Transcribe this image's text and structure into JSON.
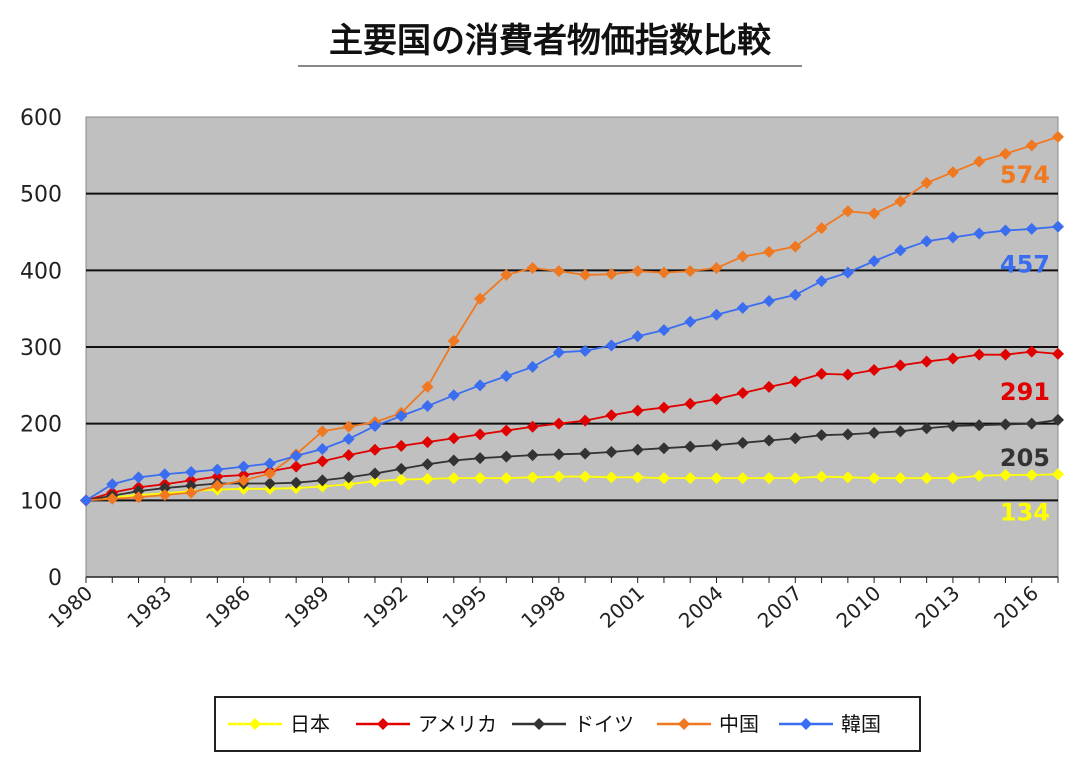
{
  "chart_data": {
    "type": "line",
    "title": "主要国の消費者物価指数比較",
    "xlabel": "",
    "ylabel": "",
    "ylim": [
      0,
      600
    ],
    "yticks": [
      0,
      100,
      200,
      300,
      400,
      500,
      600
    ],
    "xlim": [
      1980,
      2017
    ],
    "xticks": [
      "1980",
      "1983",
      "1986",
      "1989",
      "1992",
      "1995",
      "1998",
      "2001",
      "2004",
      "2007",
      "2010",
      "2013",
      "2016"
    ],
    "grid": true,
    "legend_position": "bottom",
    "x": [
      1980,
      1981,
      1982,
      1983,
      1984,
      1985,
      1986,
      1987,
      1988,
      1989,
      1990,
      1991,
      1992,
      1993,
      1994,
      1995,
      1996,
      1997,
      1998,
      1999,
      2000,
      2001,
      2002,
      2003,
      2004,
      2005,
      2006,
      2007,
      2008,
      2009,
      2010,
      2011,
      2012,
      2013,
      2014,
      2015,
      2016,
      2017
    ],
    "series": [
      {
        "name": "日本",
        "color": "#ffff00",
        "end_label": "134",
        "values": [
          100,
          104,
          107,
          109,
          112,
          114,
          115,
          115,
          116,
          118,
          121,
          125,
          127,
          128,
          129,
          129,
          129,
          130,
          131,
          131,
          130,
          130,
          129,
          129,
          129,
          129,
          129,
          129,
          131,
          130,
          129,
          129,
          129,
          129,
          132,
          133,
          133,
          134
        ]
      },
      {
        "name": "アメリカ",
        "color": "#e00000",
        "end_label": "291",
        "values": [
          100,
          110,
          117,
          121,
          126,
          131,
          133,
          138,
          144,
          151,
          159,
          166,
          171,
          176,
          181,
          186,
          191,
          196,
          200,
          204,
          211,
          217,
          221,
          226,
          232,
          240,
          248,
          255,
          265,
          264,
          270,
          276,
          281,
          285,
          290,
          290,
          294,
          291
        ]
      },
      {
        "name": "ドイツ",
        "color": "#333333",
        "end_label": "205",
        "values": [
          100,
          106,
          112,
          116,
          119,
          122,
          122,
          122,
          123,
          126,
          130,
          135,
          141,
          147,
          152,
          155,
          157,
          159,
          160,
          161,
          163,
          166,
          168,
          170,
          172,
          175,
          178,
          181,
          185,
          186,
          188,
          190,
          194,
          197,
          198,
          199,
          200,
          205
        ]
      },
      {
        "name": "中国",
        "color": "#f07820",
        "end_label": "574",
        "values": [
          100,
          102,
          104,
          107,
          110,
          119,
          126,
          135,
          160,
          190,
          196,
          202,
          214,
          248,
          308,
          363,
          394,
          403,
          399,
          394,
          395,
          399,
          397,
          399,
          403,
          418,
          424,
          431,
          455,
          477,
          474,
          490,
          514,
          528,
          542,
          552,
          563,
          574
        ]
      },
      {
        "name": "韓国",
        "color": "#3a6df0",
        "end_label": "457",
        "values": [
          100,
          121,
          130,
          134,
          137,
          140,
          144,
          148,
          158,
          167,
          180,
          197,
          210,
          223,
          237,
          250,
          262,
          274,
          293,
          295,
          302,
          314,
          322,
          333,
          342,
          351,
          360,
          368,
          386,
          397,
          412,
          426,
          438,
          443,
          448,
          452,
          454,
          457
        ]
      }
    ]
  }
}
